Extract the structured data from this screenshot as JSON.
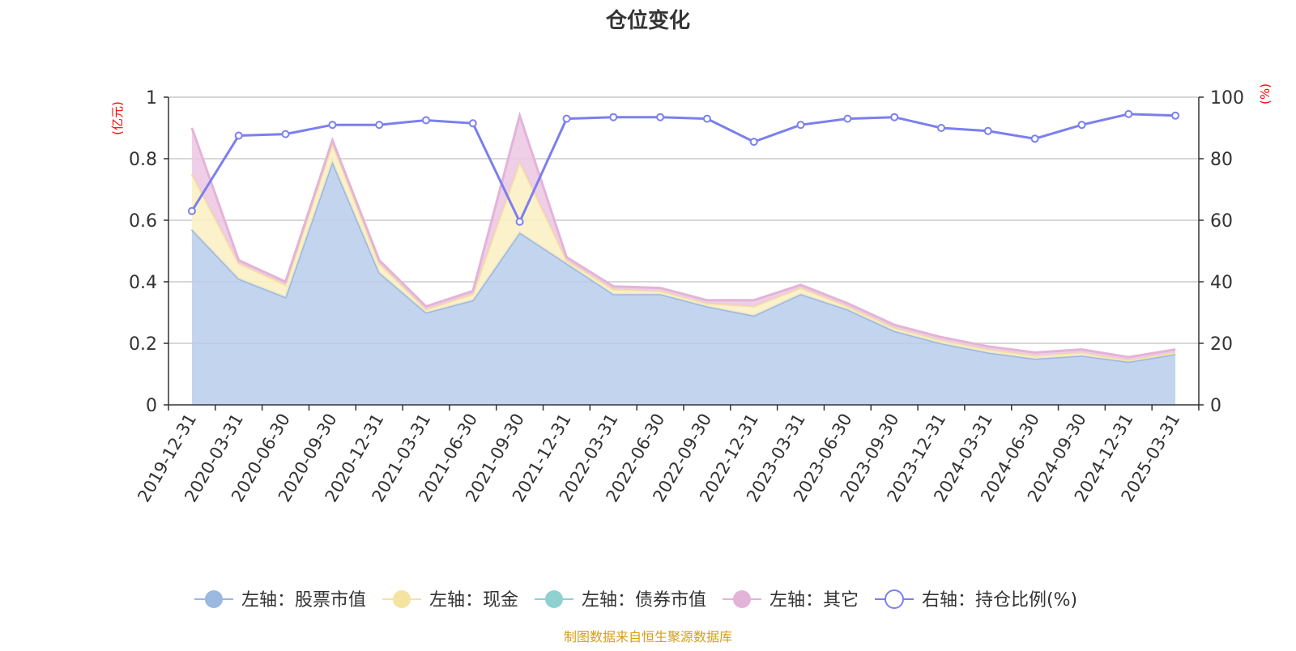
{
  "chart_data": {
    "type": "area",
    "title": "仓位变化",
    "y_left_unit": "(亿元)",
    "y_right_unit": "(%)",
    "y_left_ticks": [
      "0",
      "0.2",
      "0.4",
      "0.6",
      "0.8",
      "1"
    ],
    "y_right_ticks": [
      "0",
      "20",
      "40",
      "60",
      "80",
      "100"
    ],
    "ylim_left": [
      0,
      1
    ],
    "ylim_right": [
      0,
      100
    ],
    "grid": true,
    "legend_position": "bottom",
    "categories": [
      "2019-12-31",
      "2020-03-31",
      "2020-06-30",
      "2020-09-30",
      "2020-12-31",
      "2021-03-31",
      "2021-06-30",
      "2021-09-30",
      "2021-12-31",
      "2022-03-31",
      "2022-06-30",
      "2022-09-30",
      "2022-12-31",
      "2023-03-31",
      "2023-06-30",
      "2023-09-30",
      "2023-12-31",
      "2024-03-31",
      "2024-06-30",
      "2024-09-30",
      "2024-12-31",
      "2025-03-31"
    ],
    "series": [
      {
        "name": "左轴：股票市值",
        "axis": "left",
        "type": "area",
        "color": "#9bb8e0",
        "fill": "#b8cceb",
        "values": [
          0.57,
          0.41,
          0.35,
          0.79,
          0.43,
          0.3,
          0.34,
          0.56,
          0.46,
          0.36,
          0.36,
          0.32,
          0.29,
          0.36,
          0.31,
          0.24,
          0.2,
          0.17,
          0.15,
          0.16,
          0.14,
          0.165
        ]
      },
      {
        "name": "左轴：现金",
        "axis": "left",
        "type": "area",
        "color": "#f5e3a0",
        "fill": "#faeec2",
        "values": [
          0.18,
          0.05,
          0.04,
          0.06,
          0.03,
          0.01,
          0.02,
          0.23,
          0.01,
          0.015,
          0.01,
          0.01,
          0.03,
          0.02,
          0.01,
          0.01,
          0.01,
          0.01,
          0.01,
          0.01,
          0.005,
          0.005
        ]
      },
      {
        "name": "左轴：债券市值",
        "axis": "left",
        "type": "area",
        "color": "#8fd1d1",
        "fill": "#a8dede",
        "values": [
          0,
          0,
          0,
          0,
          0,
          0,
          0,
          0,
          0,
          0,
          0,
          0,
          0,
          0,
          0,
          0,
          0,
          0,
          0,
          0,
          0,
          0
        ]
      },
      {
        "name": "左轴：其它",
        "axis": "left",
        "type": "area",
        "color": "#e4b3d8",
        "fill": "#ecc7e3",
        "values": [
          0.15,
          0.01,
          0.01,
          0.01,
          0.01,
          0.01,
          0.01,
          0.15,
          0.01,
          0.01,
          0.01,
          0.01,
          0.02,
          0.01,
          0.01,
          0.01,
          0.01,
          0.01,
          0.01,
          0.01,
          0.01,
          0.01
        ]
      },
      {
        "name": "右轴：持仓比例(%)",
        "axis": "right",
        "type": "line",
        "color": "#7b7fef",
        "values": [
          63,
          87.5,
          88,
          91,
          91,
          92.5,
          91.5,
          59.5,
          93,
          93.5,
          93.5,
          93,
          85.5,
          91,
          93,
          93.5,
          90,
          89,
          86.5,
          91,
          94.5,
          94
        ]
      }
    ]
  },
  "footer": {
    "source_text": "制图数据来自恒生聚源数据库"
  },
  "colors": {
    "title": "#333333",
    "axis": "#333333",
    "grid": "#cccccc",
    "unit_label": "#ff0000",
    "footer": "#d4a017"
  }
}
